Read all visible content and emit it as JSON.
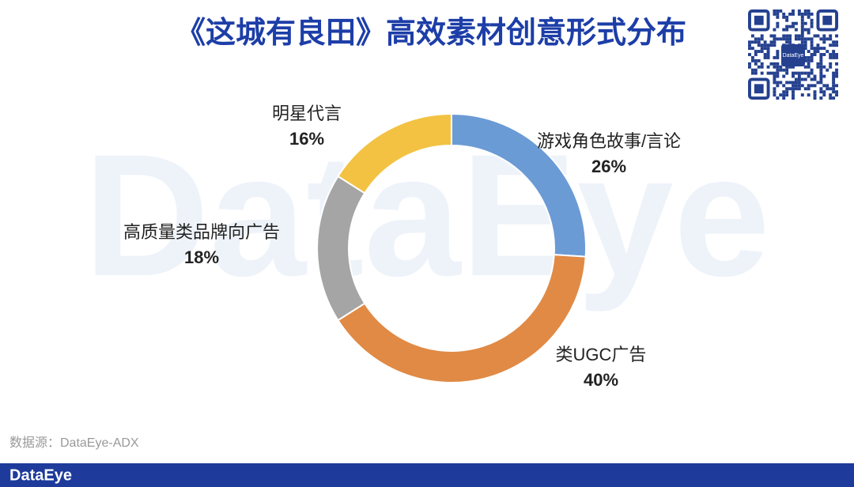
{
  "chart_data": {
    "type": "donut",
    "title": "《这城有良田》高效素材创意形式分布",
    "categories": [
      "游戏角色故事/言论",
      "类UGC广告",
      "高质量类品牌向广告",
      "明星代言"
    ],
    "values": [
      26,
      40,
      18,
      16
    ],
    "value_labels": [
      "26%",
      "40%",
      "18%",
      "16%"
    ],
    "colors": [
      "#6b9bd5",
      "#e08a45",
      "#a5a5a5",
      "#f3c242"
    ],
    "source": "数据源：DataEye-ADX",
    "watermark": "DataEye",
    "footer_logo": "DataEye",
    "qr_label": "DataEye"
  }
}
